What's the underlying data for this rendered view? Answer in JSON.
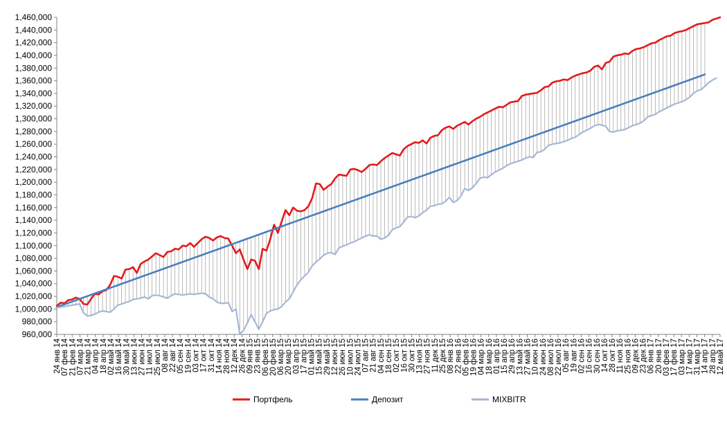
{
  "chart_data": {
    "type": "line",
    "title": "",
    "xlabel": "",
    "ylabel": "",
    "ylim": [
      960000,
      1460000
    ],
    "y_ticks": [
      "960,000",
      "980,000",
      "1,000,000",
      "1,020,000",
      "1,040,000",
      "1,060,000",
      "1,080,000",
      "1,100,000",
      "1,120,000",
      "1,140,000",
      "1,160,000",
      "1,180,000",
      "1,200,000",
      "1,220,000",
      "1,240,000",
      "1,260,000",
      "1,280,000",
      "1,300,000",
      "1,320,000",
      "1,340,000",
      "1,360,000",
      "1,380,000",
      "1,400,000",
      "1,420,000",
      "1,440,000",
      "1,460,000"
    ],
    "x_ticks": [
      "24 янв 14",
      "07 фев 14",
      "21 фев 14",
      "07 мар 14",
      "21 мар 14",
      "04 апр 14",
      "18 апр 14",
      "02 май 14",
      "16 май 14",
      "30 май 14",
      "13 июн 14",
      "27 июн 14",
      "11 июл 14",
      "25 июл 14",
      "08 авг 14",
      "22 авг 14",
      "05 сен 14",
      "19 сен 14",
      "03 окт 14",
      "17 окт 14",
      "31 окт 14",
      "14 ноя 14",
      "28 ноя 14",
      "12 дек 14",
      "26 дек 14",
      "09 янв 15",
      "23 янв 15",
      "06 фев 15",
      "20 фев 15",
      "06 мар 15",
      "20 мар 15",
      "03 апр 15",
      "17 апр 15",
      "01 май 15",
      "15 май 15",
      "29 май 15",
      "12 июн 15",
      "26 июн 15",
      "10 июл 15",
      "24 июл 15",
      "07 авг 15",
      "21 авг 15",
      "04 сен 15",
      "18 сен 15",
      "02 окт 15",
      "16 окт 15",
      "30 окт 15",
      "13 ноя 15",
      "27 ноя 15",
      "11 дек 15",
      "25 дек 15",
      "08 янв 16",
      "22 янв 16",
      "05 фев 16",
      "19 фев 16",
      "04 мар 16",
      "18 мар 16",
      "01 апр 16",
      "15 апр 16",
      "29 апр 16",
      "13 май 16",
      "27 май 16",
      "10 июн 16",
      "24 июн 16",
      "08 июл 16",
      "22 июл 16",
      "05 авг 16",
      "19 авг 16",
      "02 сен 16",
      "16 сен 16",
      "30 сен 16",
      "14 окт 16",
      "28 окт 16",
      "11 ноя 16",
      "25 ноя 16",
      "09 дек 16",
      "23 дек 16",
      "06 янв 17",
      "20 янв 17",
      "03 фев 17",
      "17 фев 17",
      "03 мар 17",
      "17 мар 17",
      "31 мар 17",
      "14 апр 17",
      "28 апр 17",
      "12 май 17"
    ],
    "legend_position": "bottom",
    "drop_lines": true,
    "series": [
      {
        "name": "Портфель",
        "color": "#e31a1c",
        "values": [
          1005000,
          1010000,
          1009000,
          1014000,
          1015000,
          1018000,
          1016000,
          1008000,
          1007000,
          1016000,
          1024000,
          1023000,
          1028000,
          1030000,
          1038000,
          1052000,
          1051000,
          1048000,
          1062000,
          1063000,
          1066000,
          1057000,
          1071000,
          1075000,
          1078000,
          1083000,
          1088000,
          1085000,
          1082000,
          1090000,
          1091000,
          1095000,
          1094000,
          1100000,
          1099000,
          1104000,
          1098000,
          1104000,
          1110000,
          1114000,
          1112000,
          1108000,
          1113000,
          1115000,
          1112000,
          1111000,
          1100000,
          1088000,
          1094000,
          1078000,
          1063000,
          1078000,
          1076000,
          1063000,
          1095000,
          1092000,
          1110000,
          1133000,
          1120000,
          1138000,
          1156000,
          1148000,
          1160000,
          1155000,
          1154000,
          1156000,
          1162000,
          1175000,
          1198000,
          1197000,
          1188000,
          1193000,
          1197000,
          1206000,
          1212000,
          1211000,
          1210000,
          1220000,
          1221000,
          1219000,
          1216000,
          1221000,
          1227000,
          1228000,
          1227000,
          1233000,
          1238000,
          1242000,
          1246000,
          1244000,
          1242000,
          1252000,
          1257000,
          1260000,
          1263000,
          1262000,
          1266000,
          1261000,
          1270000,
          1273000,
          1274000,
          1282000,
          1286000,
          1288000,
          1284000,
          1289000,
          1292000,
          1295000,
          1291000,
          1296000,
          1300000,
          1303000,
          1307000,
          1310000,
          1313000,
          1316000,
          1319000,
          1318000,
          1322000,
          1326000,
          1327000,
          1328000,
          1336000,
          1338000,
          1339000,
          1340000,
          1341000,
          1345000,
          1350000,
          1351000,
          1357000,
          1359000,
          1360000,
          1362000,
          1361000,
          1365000,
          1368000,
          1370000,
          1372000,
          1373000,
          1376000,
          1382000,
          1384000,
          1378000,
          1388000,
          1390000,
          1398000,
          1400000,
          1401000,
          1403000,
          1402000,
          1407000,
          1410000,
          1411000,
          1413000,
          1416000,
          1419000,
          1420000,
          1424000,
          1427000,
          1430000,
          1431000,
          1435000,
          1437000,
          1438000,
          1440000,
          1443000,
          1446000,
          1449000,
          1450000,
          1451000,
          1452000,
          1456000,
          1458000,
          1460000
        ]
      },
      {
        "name": "Депозит",
        "color": "#4a7ebb",
        "values": [
          1003000,
          1005158,
          1007316,
          1009474,
          1011632,
          1013790,
          1015948,
          1018106,
          1020264,
          1022422,
          1024580,
          1026738,
          1028896,
          1031054,
          1033212,
          1035370,
          1037528,
          1039686,
          1041844,
          1044002,
          1046160,
          1048318,
          1050476,
          1052634,
          1054792,
          1056950,
          1059108,
          1061266,
          1063424,
          1065582,
          1067740,
          1069898,
          1072056,
          1074214,
          1076372,
          1078530,
          1080688,
          1082846,
          1085004,
          1087162,
          1089320,
          1091478,
          1093636,
          1095794,
          1097952,
          1100110,
          1102268,
          1104426,
          1106584,
          1108742,
          1110900,
          1113058,
          1115216,
          1117374,
          1119532,
          1121690,
          1123848,
          1126006,
          1128164,
          1130322,
          1132480,
          1134638,
          1136796,
          1138954,
          1141112,
          1143270,
          1145428,
          1147586,
          1149744,
          1151902,
          1154060,
          1156218,
          1158376,
          1160534,
          1162692,
          1164850,
          1167008,
          1169166,
          1171324,
          1173482,
          1175640,
          1177798,
          1179956,
          1182114,
          1184272,
          1186430,
          1188588,
          1190746,
          1192904,
          1195062,
          1197220,
          1199378,
          1201536,
          1203694,
          1205852,
          1208010,
          1210168,
          1212326,
          1214484,
          1216642,
          1218800,
          1220958,
          1223116,
          1225274,
          1227432,
          1229590,
          1231748,
          1233906,
          1236064,
          1238222,
          1240380,
          1242538,
          1244696,
          1246854,
          1249012,
          1251170,
          1253328,
          1255486,
          1257644,
          1259802,
          1261960,
          1264118,
          1266276,
          1268434,
          1270592,
          1272750,
          1274908,
          1277066,
          1279224,
          1281382,
          1283540,
          1285698,
          1287856,
          1290014,
          1292172,
          1294330,
          1296488,
          1298646,
          1300804,
          1302962,
          1305120,
          1307278,
          1309436,
          1311594,
          1313752,
          1315910,
          1318068,
          1320226,
          1322384,
          1324542,
          1326700,
          1328858,
          1331016,
          1333174,
          1335332,
          1337490,
          1339648,
          1341806,
          1343964,
          1346122,
          1348280,
          1350438,
          1352596,
          1354754,
          1356912,
          1359070,
          1361228,
          1363386,
          1365544,
          1367702,
          1370000
        ]
      },
      {
        "name": "MIXBITR",
        "color": "#a6b6d6",
        "values": [
          1002000,
          1003000,
          1004000,
          1005000,
          1006000,
          1007000,
          1008000,
          994000,
          989000,
          990000,
          992000,
          995000,
          997000,
          996000,
          995000,
          1000000,
          1006000,
          1008000,
          1010000,
          1012000,
          1015000,
          1016000,
          1017000,
          1019000,
          1016000,
          1021000,
          1022000,
          1021000,
          1019000,
          1017000,
          1021000,
          1024000,
          1023000,
          1022000,
          1023000,
          1024000,
          1023000,
          1024000,
          1025000,
          1024000,
          1019000,
          1016000,
          1011000,
          1009000,
          1009000,
          1010000,
          996000,
          1000000,
          961000,
          966000,
          978000,
          991000,
          980000,
          968000,
          980000,
          993000,
          997000,
          999000,
          1000000,
          1004000,
          1011000,
          1016000,
          1027000,
          1038000,
          1046000,
          1052000,
          1058000,
          1068000,
          1074000,
          1079000,
          1085000,
          1088000,
          1089000,
          1086000,
          1096000,
          1099000,
          1101000,
          1104000,
          1106000,
          1109000,
          1112000,
          1115000,
          1117000,
          1115000,
          1115000,
          1110000,
          1112000,
          1116000,
          1125000,
          1128000,
          1130000,
          1137000,
          1145000,
          1146000,
          1144000,
          1147000,
          1152000,
          1156000,
          1162000,
          1163000,
          1165000,
          1166000,
          1170000,
          1176000,
          1168000,
          1171000,
          1178000,
          1190000,
          1187000,
          1191000,
          1198000,
          1206000,
          1208000,
          1207000,
          1212000,
          1216000,
          1219000,
          1222000,
          1226000,
          1229000,
          1231000,
          1233000,
          1235000,
          1238000,
          1240000,
          1239000,
          1247000,
          1248000,
          1252000,
          1258000,
          1260000,
          1261000,
          1262000,
          1264000,
          1266000,
          1269000,
          1271000,
          1275000,
          1279000,
          1282000,
          1285000,
          1289000,
          1291000,
          1290000,
          1288000,
          1280000,
          1279000,
          1281000,
          1282000,
          1283000,
          1286000,
          1289000,
          1291000,
          1293000,
          1297000,
          1303000,
          1305000,
          1307000,
          1311000,
          1314000,
          1317000,
          1320000,
          1323000,
          1325000,
          1327000,
          1330000,
          1334000,
          1340000,
          1344000,
          1346000,
          1351000,
          1357000,
          1361000,
          1364000
        ]
      }
    ]
  }
}
